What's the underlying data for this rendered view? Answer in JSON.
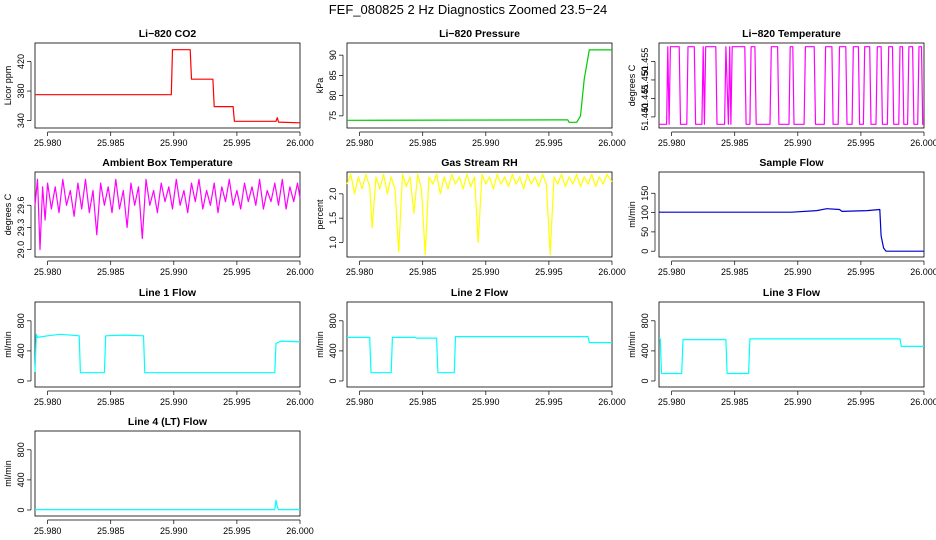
{
  "page": {
    "title": "FEF_080825  2 Hz Diagnostics Zoomed 23.5−24"
  },
  "chart_data": [
    {
      "type": "line",
      "title": "Li−820 CO2",
      "ylabel": "Licor ppm",
      "color": "#ff0000",
      "xlim": [
        25.979,
        26.0
      ],
      "ylim": [
        330,
        445
      ],
      "xticks": [
        25.98,
        25.985,
        25.99,
        25.995,
        26.0
      ],
      "xtick_labels": [
        "25.980",
        "25.985",
        "25.990",
        "25.995",
        "26.000"
      ],
      "yticks": [
        340,
        380,
        420
      ],
      "ytick_labels": [
        "340",
        "380",
        "420"
      ],
      "x": [
        25.979,
        25.9898,
        25.9899,
        25.9913,
        25.9914,
        25.9931,
        25.9932,
        25.9947,
        25.9948,
        25.9981,
        25.9982,
        25.9983,
        26.0
      ],
      "y": [
        375,
        375,
        436,
        436,
        396,
        396,
        359,
        359,
        339,
        339,
        344,
        338,
        337
      ]
    },
    {
      "type": "line",
      "title": "Li−820 Pressure",
      "ylabel": "kPa",
      "color": "#00cc00",
      "xlim": [
        25.979,
        26.0
      ],
      "ylim": [
        72,
        93
      ],
      "xticks": [
        25.98,
        25.985,
        25.99,
        25.995,
        26.0
      ],
      "xtick_labels": [
        "25.980",
        "25.985",
        "25.990",
        "25.995",
        "26.000"
      ],
      "yticks": [
        75,
        80,
        85,
        90
      ],
      "ytick_labels": [
        "75",
        "80",
        "85",
        "90"
      ],
      "x": [
        25.979,
        25.9955,
        25.9965,
        25.9966,
        25.9972,
        25.9975,
        25.9978,
        25.9982,
        26.0
      ],
      "y": [
        73.9,
        74.0,
        74.0,
        73.4,
        73.4,
        75,
        84,
        91.3,
        91.3
      ]
    },
    {
      "type": "line",
      "title": "Li−820 Temperature",
      "ylabel": "degrees C",
      "color": "#ff00ff",
      "xlim": [
        25.979,
        26.0
      ],
      "ylim": [
        51.437,
        51.46
      ],
      "xticks": [
        25.98,
        25.985,
        25.99,
        25.995,
        26.0
      ],
      "xtick_labels": [
        "25.980",
        "25.985",
        "25.990",
        "25.995",
        "26.000"
      ],
      "yticks": [
        51.44,
        51.445,
        51.45,
        51.455
      ],
      "ytick_labels": [
        "51.440",
        "51.445",
        "51.450",
        "51.455"
      ],
      "x": [
        25.979,
        25.9796,
        25.9797,
        25.9798,
        25.9799,
        25.9806,
        25.9807,
        25.9812,
        25.9813,
        25.9818,
        25.9819,
        25.9824,
        25.9825,
        25.9826,
        25.9827,
        25.9835,
        25.9836,
        25.9842,
        25.9843,
        25.9845,
        25.9846,
        25.9847,
        25.9848,
        25.9858,
        25.9859,
        25.9862,
        25.9863,
        25.9866,
        25.9867,
        25.9878,
        25.9879,
        25.9884,
        25.9885,
        25.9893,
        25.9894,
        25.9896,
        25.9897,
        25.9905,
        25.9906,
        25.9913,
        25.9914,
        25.9921,
        25.9922,
        25.9927,
        25.9928,
        25.9932,
        25.9933,
        25.9938,
        25.9939,
        25.9943,
        25.9944,
        25.9948,
        25.9949,
        25.9952,
        25.9953,
        25.9957,
        25.9958,
        25.9962,
        25.9963,
        25.9966,
        25.9967,
        25.9971,
        25.9972,
        25.9975,
        25.9976,
        25.998,
        25.9981,
        25.9983,
        25.9984,
        25.9987,
        25.9988,
        25.9991,
        25.9992,
        25.9995,
        25.9996,
        25.9998,
        25.9999,
        26.0
      ],
      "y": [
        51.438,
        51.438,
        51.459,
        51.438,
        51.459,
        51.459,
        51.438,
        51.438,
        51.459,
        51.459,
        51.438,
        51.438,
        51.459,
        51.438,
        51.459,
        51.459,
        51.438,
        51.438,
        51.459,
        51.438,
        51.459,
        51.438,
        51.459,
        51.459,
        51.438,
        51.438,
        51.459,
        51.459,
        51.438,
        51.438,
        51.459,
        51.459,
        51.438,
        51.438,
        51.459,
        51.459,
        51.438,
        51.438,
        51.459,
        51.459,
        51.438,
        51.438,
        51.459,
        51.459,
        51.438,
        51.438,
        51.459,
        51.459,
        51.438,
        51.438,
        51.459,
        51.459,
        51.438,
        51.438,
        51.459,
        51.459,
        51.438,
        51.438,
        51.459,
        51.459,
        51.438,
        51.438,
        51.459,
        51.459,
        51.438,
        51.438,
        51.459,
        51.459,
        51.438,
        51.438,
        51.459,
        51.459,
        51.438,
        51.438,
        51.459,
        51.459,
        51.438,
        51.438
      ]
    },
    {
      "type": "line",
      "title": "Ambient Box Temperature",
      "ylabel": "degrees C",
      "color": "#ff00ff",
      "xlim": [
        25.979,
        26.0
      ],
      "ylim": [
        28.9,
        30.05
      ],
      "xticks": [
        25.98,
        25.985,
        25.99,
        25.995,
        26.0
      ],
      "xtick_labels": [
        "25.980",
        "25.985",
        "25.990",
        "25.995",
        "26.000"
      ],
      "yticks": [
        29.0,
        29.3,
        29.6
      ],
      "ytick_labels": [
        "29.0",
        "29.3",
        "29.6"
      ],
      "x": [
        25.979,
        25.9792,
        25.9794,
        25.9796,
        25.9798,
        25.98,
        25.9803,
        25.9806,
        25.9809,
        25.9812,
        25.9815,
        25.9818,
        25.9821,
        25.9824,
        25.9827,
        25.983,
        25.9833,
        25.9836,
        25.9839,
        25.9842,
        25.9845,
        25.9848,
        25.9851,
        25.9854,
        25.9857,
        25.986,
        25.9863,
        25.9866,
        25.9869,
        25.9872,
        25.9875,
        25.9878,
        25.9881,
        25.9884,
        25.9887,
        25.989,
        25.9893,
        25.9896,
        25.9899,
        25.9902,
        25.9905,
        25.9908,
        25.9911,
        25.9914,
        25.9917,
        25.992,
        25.9923,
        25.9926,
        25.9929,
        25.9932,
        25.9935,
        25.9938,
        25.9941,
        25.9944,
        25.9947,
        25.995,
        25.9953,
        25.9956,
        25.9959,
        25.9962,
        25.9965,
        25.9968,
        25.9971,
        25.9974,
        25.9977,
        25.998,
        25.9983,
        25.9986,
        25.9989,
        25.9992,
        25.9995,
        25.9998,
        26.0
      ],
      "y": [
        29.6,
        29.95,
        29.0,
        29.85,
        29.4,
        29.9,
        29.55,
        29.85,
        29.5,
        29.95,
        29.6,
        29.8,
        29.45,
        29.9,
        29.55,
        29.95,
        29.5,
        29.8,
        29.2,
        29.9,
        29.6,
        29.85,
        29.5,
        29.95,
        29.55,
        29.8,
        29.3,
        29.9,
        29.6,
        29.85,
        29.15,
        29.95,
        29.6,
        29.8,
        29.5,
        29.9,
        29.65,
        29.85,
        29.55,
        29.95,
        29.6,
        29.8,
        29.5,
        29.9,
        29.65,
        29.95,
        29.55,
        29.8,
        29.6,
        29.9,
        29.5,
        29.85,
        29.65,
        29.95,
        29.6,
        29.8,
        29.55,
        29.9,
        29.65,
        29.85,
        29.6,
        29.95,
        29.55,
        29.8,
        29.65,
        29.9,
        29.6,
        29.95,
        29.55,
        29.85,
        29.65,
        29.9,
        29.7
      ]
    },
    {
      "type": "line",
      "title": "Gas Stream RH",
      "ylabel": "percent",
      "color": "#ffff00",
      "xlim": [
        25.979,
        26.0
      ],
      "ylim": [
        0.7,
        2.45
      ],
      "xticks": [
        25.98,
        25.985,
        25.99,
        25.995,
        26.0
      ],
      "xtick_labels": [
        "25.980",
        "25.985",
        "25.990",
        "25.995",
        "26.000"
      ],
      "yticks": [
        1.0,
        1.5,
        2.0
      ],
      "ytick_labels": [
        "1.0",
        "1.5",
        "2.0"
      ],
      "x": [
        25.979,
        25.9793,
        25.9796,
        25.9799,
        25.9802,
        25.9805,
        25.9808,
        25.981,
        25.9813,
        25.9816,
        25.9819,
        25.9822,
        25.9825,
        25.9828,
        25.9831,
        25.9834,
        25.9837,
        25.984,
        25.9843,
        25.9846,
        25.9849,
        25.9852,
        25.9855,
        25.9858,
        25.9861,
        25.9864,
        25.9867,
        25.987,
        25.9873,
        25.9876,
        25.9879,
        25.9882,
        25.9885,
        25.9888,
        25.9891,
        25.9894,
        25.9897,
        25.99,
        25.9903,
        25.9906,
        25.9909,
        25.9912,
        25.9915,
        25.9918,
        25.9921,
        25.9924,
        25.9927,
        25.993,
        25.9933,
        25.9936,
        25.9939,
        25.9942,
        25.9945,
        25.9948,
        25.9951,
        25.9954,
        25.9957,
        25.996,
        25.9963,
        25.9966,
        25.9969,
        25.9972,
        25.9975,
        25.9978,
        25.9981,
        25.9984,
        25.9987,
        25.999,
        25.9993,
        25.9996,
        26.0
      ],
      "y": [
        2.2,
        2.4,
        2.0,
        2.35,
        2.1,
        2.4,
        2.15,
        1.3,
        2.35,
        2.1,
        2.4,
        2.0,
        2.35,
        2.1,
        0.8,
        2.4,
        2.15,
        2.35,
        1.6,
        2.4,
        2.1,
        0.75,
        2.35,
        2.2,
        2.4,
        2.0,
        2.35,
        2.1,
        2.4,
        2.2,
        2.35,
        2.1,
        2.4,
        2.15,
        2.35,
        1.0,
        2.4,
        2.2,
        2.35,
        2.1,
        2.4,
        2.2,
        2.35,
        2.15,
        2.4,
        2.2,
        2.35,
        2.1,
        2.4,
        2.2,
        2.35,
        2.15,
        2.4,
        2.2,
        0.75,
        2.35,
        2.2,
        2.4,
        2.15,
        2.35,
        2.2,
        2.4,
        2.15,
        2.35,
        2.2,
        2.4,
        2.15,
        2.35,
        2.2,
        2.4,
        2.25
      ]
    },
    {
      "type": "line",
      "title": "Sample Flow",
      "ylabel": "ml/min",
      "color": "#0000cc",
      "xlim": [
        25.979,
        26.0
      ],
      "ylim": [
        -15,
        205
      ],
      "xticks": [
        25.98,
        25.985,
        25.99,
        25.995,
        26.0
      ],
      "xtick_labels": [
        "25.980",
        "25.985",
        "25.990",
        "25.995",
        "26.000"
      ],
      "yticks": [
        0,
        50,
        100,
        150
      ],
      "ytick_labels": [
        "0",
        "50",
        "100",
        "150"
      ],
      "x": [
        25.979,
        25.986,
        25.9895,
        25.9915,
        25.9923,
        25.9933,
        25.9935,
        25.9955,
        25.9965,
        25.9966,
        25.9968,
        25.997,
        26.0
      ],
      "y": [
        101,
        101,
        101,
        105,
        110,
        108,
        103,
        105,
        108,
        40,
        8,
        0,
        0
      ]
    },
    {
      "type": "line",
      "title": "Line 1 Flow",
      "ylabel": "ml/min",
      "color": "#00ffff",
      "xlim": [
        25.979,
        26.0
      ],
      "ylim": [
        -80,
        1050
      ],
      "xticks": [
        25.98,
        25.985,
        25.99,
        25.995,
        26.0
      ],
      "xtick_labels": [
        "25.980",
        "25.985",
        "25.990",
        "25.995",
        "26.000"
      ],
      "yticks": [
        0,
        400,
        800
      ],
      "ytick_labels": [
        "0",
        "400",
        "800"
      ],
      "x": [
        25.979,
        25.9791,
        25.9792,
        25.98,
        25.981,
        25.9825,
        25.9826,
        25.9845,
        25.9846,
        25.986,
        25.9876,
        25.9877,
        25.996,
        25.998,
        25.9981,
        25.9985,
        26.0
      ],
      "y": [
        120,
        620,
        580,
        600,
        620,
        600,
        110,
        110,
        600,
        610,
        600,
        110,
        110,
        110,
        500,
        530,
        520
      ]
    },
    {
      "type": "line",
      "title": "Line 2 Flow",
      "ylabel": "ml/min",
      "color": "#00ffff",
      "xlim": [
        25.979,
        26.0
      ],
      "ylim": [
        -80,
        1050
      ],
      "xticks": [
        25.98,
        25.985,
        25.99,
        25.995,
        26.0
      ],
      "xtick_labels": [
        "25.980",
        "25.985",
        "25.990",
        "25.995",
        "26.000"
      ],
      "yticks": [
        0,
        400,
        800
      ],
      "ytick_labels": [
        "0",
        "400",
        "800"
      ],
      "x": [
        25.979,
        25.9808,
        25.9809,
        25.9825,
        25.9826,
        25.9844,
        25.9845,
        25.9861,
        25.9862,
        25.9875,
        25.9876,
        25.9981,
        25.9982,
        26.0
      ],
      "y": [
        580,
        580,
        110,
        110,
        580,
        580,
        570,
        570,
        110,
        110,
        590,
        590,
        510,
        510
      ]
    },
    {
      "type": "line",
      "title": "Line 3 Flow",
      "ylabel": "ml/min",
      "color": "#00ffff",
      "xlim": [
        25.979,
        26.0
      ],
      "ylim": [
        -80,
        1050
      ],
      "xticks": [
        25.98,
        25.985,
        25.99,
        25.995,
        26.0
      ],
      "xtick_labels": [
        "25.980",
        "25.985",
        "25.990",
        "25.995",
        "26.000"
      ],
      "yticks": [
        0,
        400,
        800
      ],
      "ytick_labels": [
        "0",
        "400",
        "800"
      ],
      "x": [
        25.979,
        25.9791,
        25.9792,
        25.9808,
        25.9809,
        25.9843,
        25.9844,
        25.9861,
        25.9862,
        25.9981,
        25.9982,
        26.0
      ],
      "y": [
        560,
        560,
        100,
        100,
        550,
        550,
        100,
        100,
        560,
        560,
        460,
        460
      ]
    },
    {
      "type": "line",
      "title": "Line 4 (LT) Flow",
      "ylabel": "ml/min",
      "color": "#00ffff",
      "xlim": [
        25.979,
        26.0
      ],
      "ylim": [
        -80,
        1050
      ],
      "xticks": [
        25.98,
        25.985,
        25.99,
        25.995,
        26.0
      ],
      "xtick_labels": [
        "25.980",
        "25.985",
        "25.990",
        "25.995",
        "26.000"
      ],
      "yticks": [
        0,
        400,
        800
      ],
      "ytick_labels": [
        "0",
        "400",
        "800"
      ],
      "x": [
        25.979,
        25.998,
        25.9981,
        25.9982,
        25.9983,
        26.0
      ],
      "y": [
        5,
        5,
        130,
        40,
        5,
        5
      ]
    }
  ]
}
